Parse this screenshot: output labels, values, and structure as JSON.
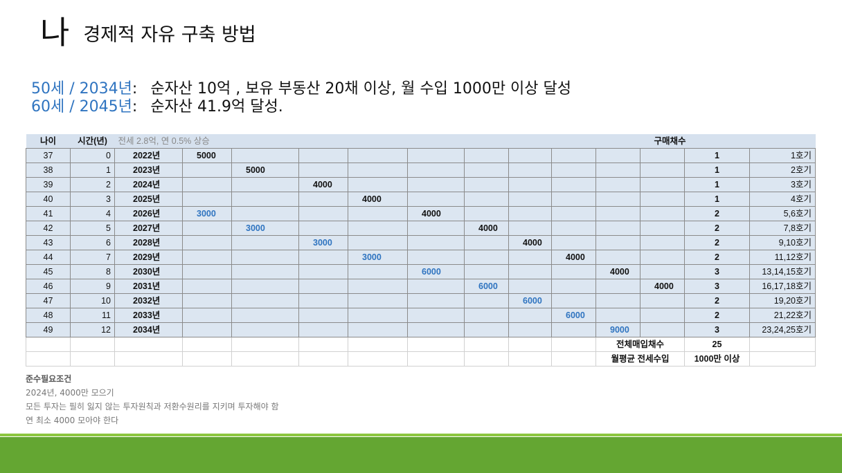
{
  "title": {
    "big": "나",
    "sub": "경제적 자유 구축 방법"
  },
  "goals": [
    {
      "age": "50세",
      "sep": "/",
      "year": "2034년",
      "colon": ":",
      "text": "순자산 10억 ,  보유 부동산 20채 이상,  월 수입 1000만 이상 달성"
    },
    {
      "age": "60세",
      "sep": "/",
      "year": "2045년",
      "colon": ":",
      "text": "순자산 41.9억 달성."
    }
  ],
  "table": {
    "header": {
      "age": "나이",
      "time": "시간(년)",
      "note": "전세 2.8억, 연 0.5% 상승",
      "count": "구매채수"
    },
    "rows": [
      {
        "age": "37",
        "t": "0",
        "year": "2022년",
        "cells": [
          "5000",
          "",
          "",
          "",
          "",
          "",
          "",
          "",
          "",
          ""
        ],
        "count": "1",
        "hogi": "1호기"
      },
      {
        "age": "38",
        "t": "1",
        "year": "2023년",
        "cells": [
          "",
          "5000",
          "",
          "",
          "",
          "",
          "",
          "",
          "",
          ""
        ],
        "count": "1",
        "hogi": "2호기"
      },
      {
        "age": "39",
        "t": "2",
        "year": "2024년",
        "cells": [
          "",
          "",
          "4000",
          "",
          "",
          "",
          "",
          "",
          "",
          ""
        ],
        "count": "1",
        "hogi": "3호기"
      },
      {
        "age": "40",
        "t": "3",
        "year": "2025년",
        "cells": [
          "",
          "",
          "",
          "4000",
          "",
          "",
          "",
          "",
          "",
          ""
        ],
        "count": "1",
        "hogi": "4호기"
      },
      {
        "age": "41",
        "t": "4",
        "year": "2026년",
        "cells": [
          "3000",
          "",
          "",
          "",
          "4000",
          "",
          "",
          "",
          "",
          ""
        ],
        "count": "2",
        "hogi": "5,6호기"
      },
      {
        "age": "42",
        "t": "5",
        "year": "2027년",
        "cells": [
          "",
          "3000",
          "",
          "",
          "",
          "4000",
          "",
          "",
          "",
          ""
        ],
        "count": "2",
        "hogi": "7,8호기"
      },
      {
        "age": "43",
        "t": "6",
        "year": "2028년",
        "cells": [
          "",
          "",
          "3000",
          "",
          "",
          "",
          "4000",
          "",
          "",
          ""
        ],
        "count": "2",
        "hogi": "9,10호기"
      },
      {
        "age": "44",
        "t": "7",
        "year": "2029년",
        "cells": [
          "",
          "",
          "",
          "3000",
          "",
          "",
          "",
          "4000",
          "",
          ""
        ],
        "count": "2",
        "hogi": "11,12호기"
      },
      {
        "age": "45",
        "t": "8",
        "year": "2030년",
        "cells": [
          "",
          "",
          "",
          "",
          "6000",
          "",
          "",
          "",
          "4000",
          ""
        ],
        "count": "3",
        "hogi": "13,14,15호기"
      },
      {
        "age": "46",
        "t": "9",
        "year": "2031년",
        "cells": [
          "",
          "",
          "",
          "",
          "",
          "6000",
          "",
          "",
          "",
          "4000"
        ],
        "count": "3",
        "hogi": "16,17,18호기"
      },
      {
        "age": "47",
        "t": "10",
        "year": "2032년",
        "cells": [
          "",
          "",
          "",
          "",
          "",
          "",
          "6000",
          "",
          "",
          ""
        ],
        "count": "2",
        "hogi": "19,20호기"
      },
      {
        "age": "48",
        "t": "11",
        "year": "2033년",
        "cells": [
          "",
          "",
          "",
          "",
          "",
          "",
          "",
          "6000",
          "",
          ""
        ],
        "count": "2",
        "hogi": "21,22호기"
      },
      {
        "age": "49",
        "t": "12",
        "year": "2034년",
        "cells": [
          "",
          "",
          "",
          "",
          "",
          "",
          "",
          "",
          "9000",
          ""
        ],
        "count": "3",
        "hogi": "23,24,25호기"
      }
    ],
    "total_label": "전체매입채수",
    "total_value": "25",
    "income_label": "월평균 전세수입",
    "income_value": "1000만 이상"
  },
  "notes": {
    "title": "준수필요조건",
    "lines": [
      "2024년, 4000만 모으기",
      "모든 투자는 필히 잃지 않는 투자원칙과 저환수원리를 지키며 투자해야 함",
      "연 최소 4000 모아야 한다"
    ]
  },
  "colors": {
    "blue": "#2f74c0",
    "green": "#64a632",
    "table_fill": "#dce6f1",
    "highlight": "#fdf6d8"
  }
}
